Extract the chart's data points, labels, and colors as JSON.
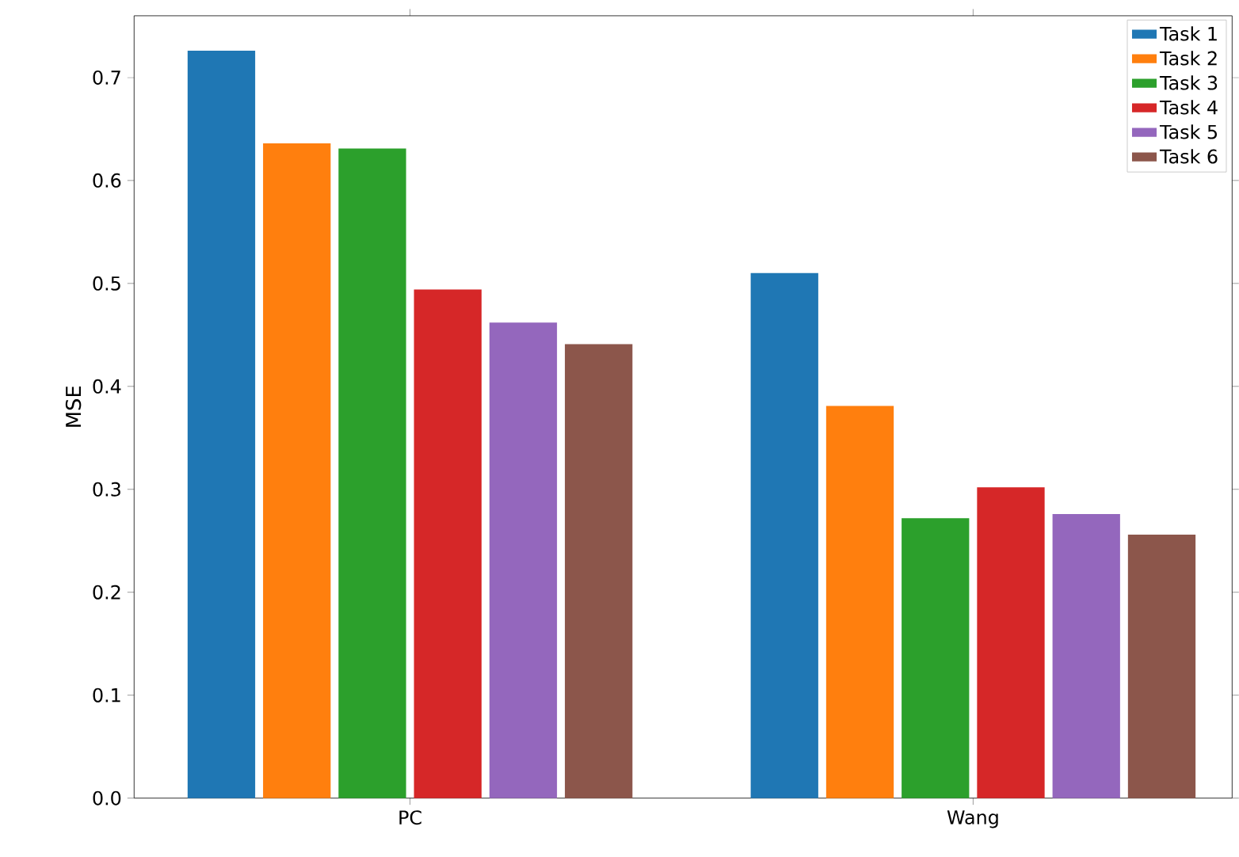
{
  "chart_data": {
    "type": "bar",
    "ylabel": "MSE",
    "categories": [
      "PC",
      "Wang"
    ],
    "series": [
      {
        "name": "Task 1",
        "color": "#1f77b4",
        "values": [
          0.726,
          0.51
        ]
      },
      {
        "name": "Task 2",
        "color": "#ff7f0e",
        "values": [
          0.636,
          0.381
        ]
      },
      {
        "name": "Task 3",
        "color": "#2ca02c",
        "values": [
          0.631,
          0.272
        ]
      },
      {
        "name": "Task 4",
        "color": "#d62728",
        "values": [
          0.494,
          0.302
        ]
      },
      {
        "name": "Task 5",
        "color": "#9467bd",
        "values": [
          0.462,
          0.276
        ]
      },
      {
        "name": "Task 6",
        "color": "#8c564b",
        "values": [
          0.441,
          0.256
        ]
      }
    ],
    "ylim": [
      0,
      0.76
    ],
    "yticks": [
      {
        "value": 0,
        "label": "0.0"
      },
      0.1,
      0.2,
      0.3,
      0.4,
      0.5,
      0.6,
      0.7
    ],
    "legend": "top right"
  }
}
